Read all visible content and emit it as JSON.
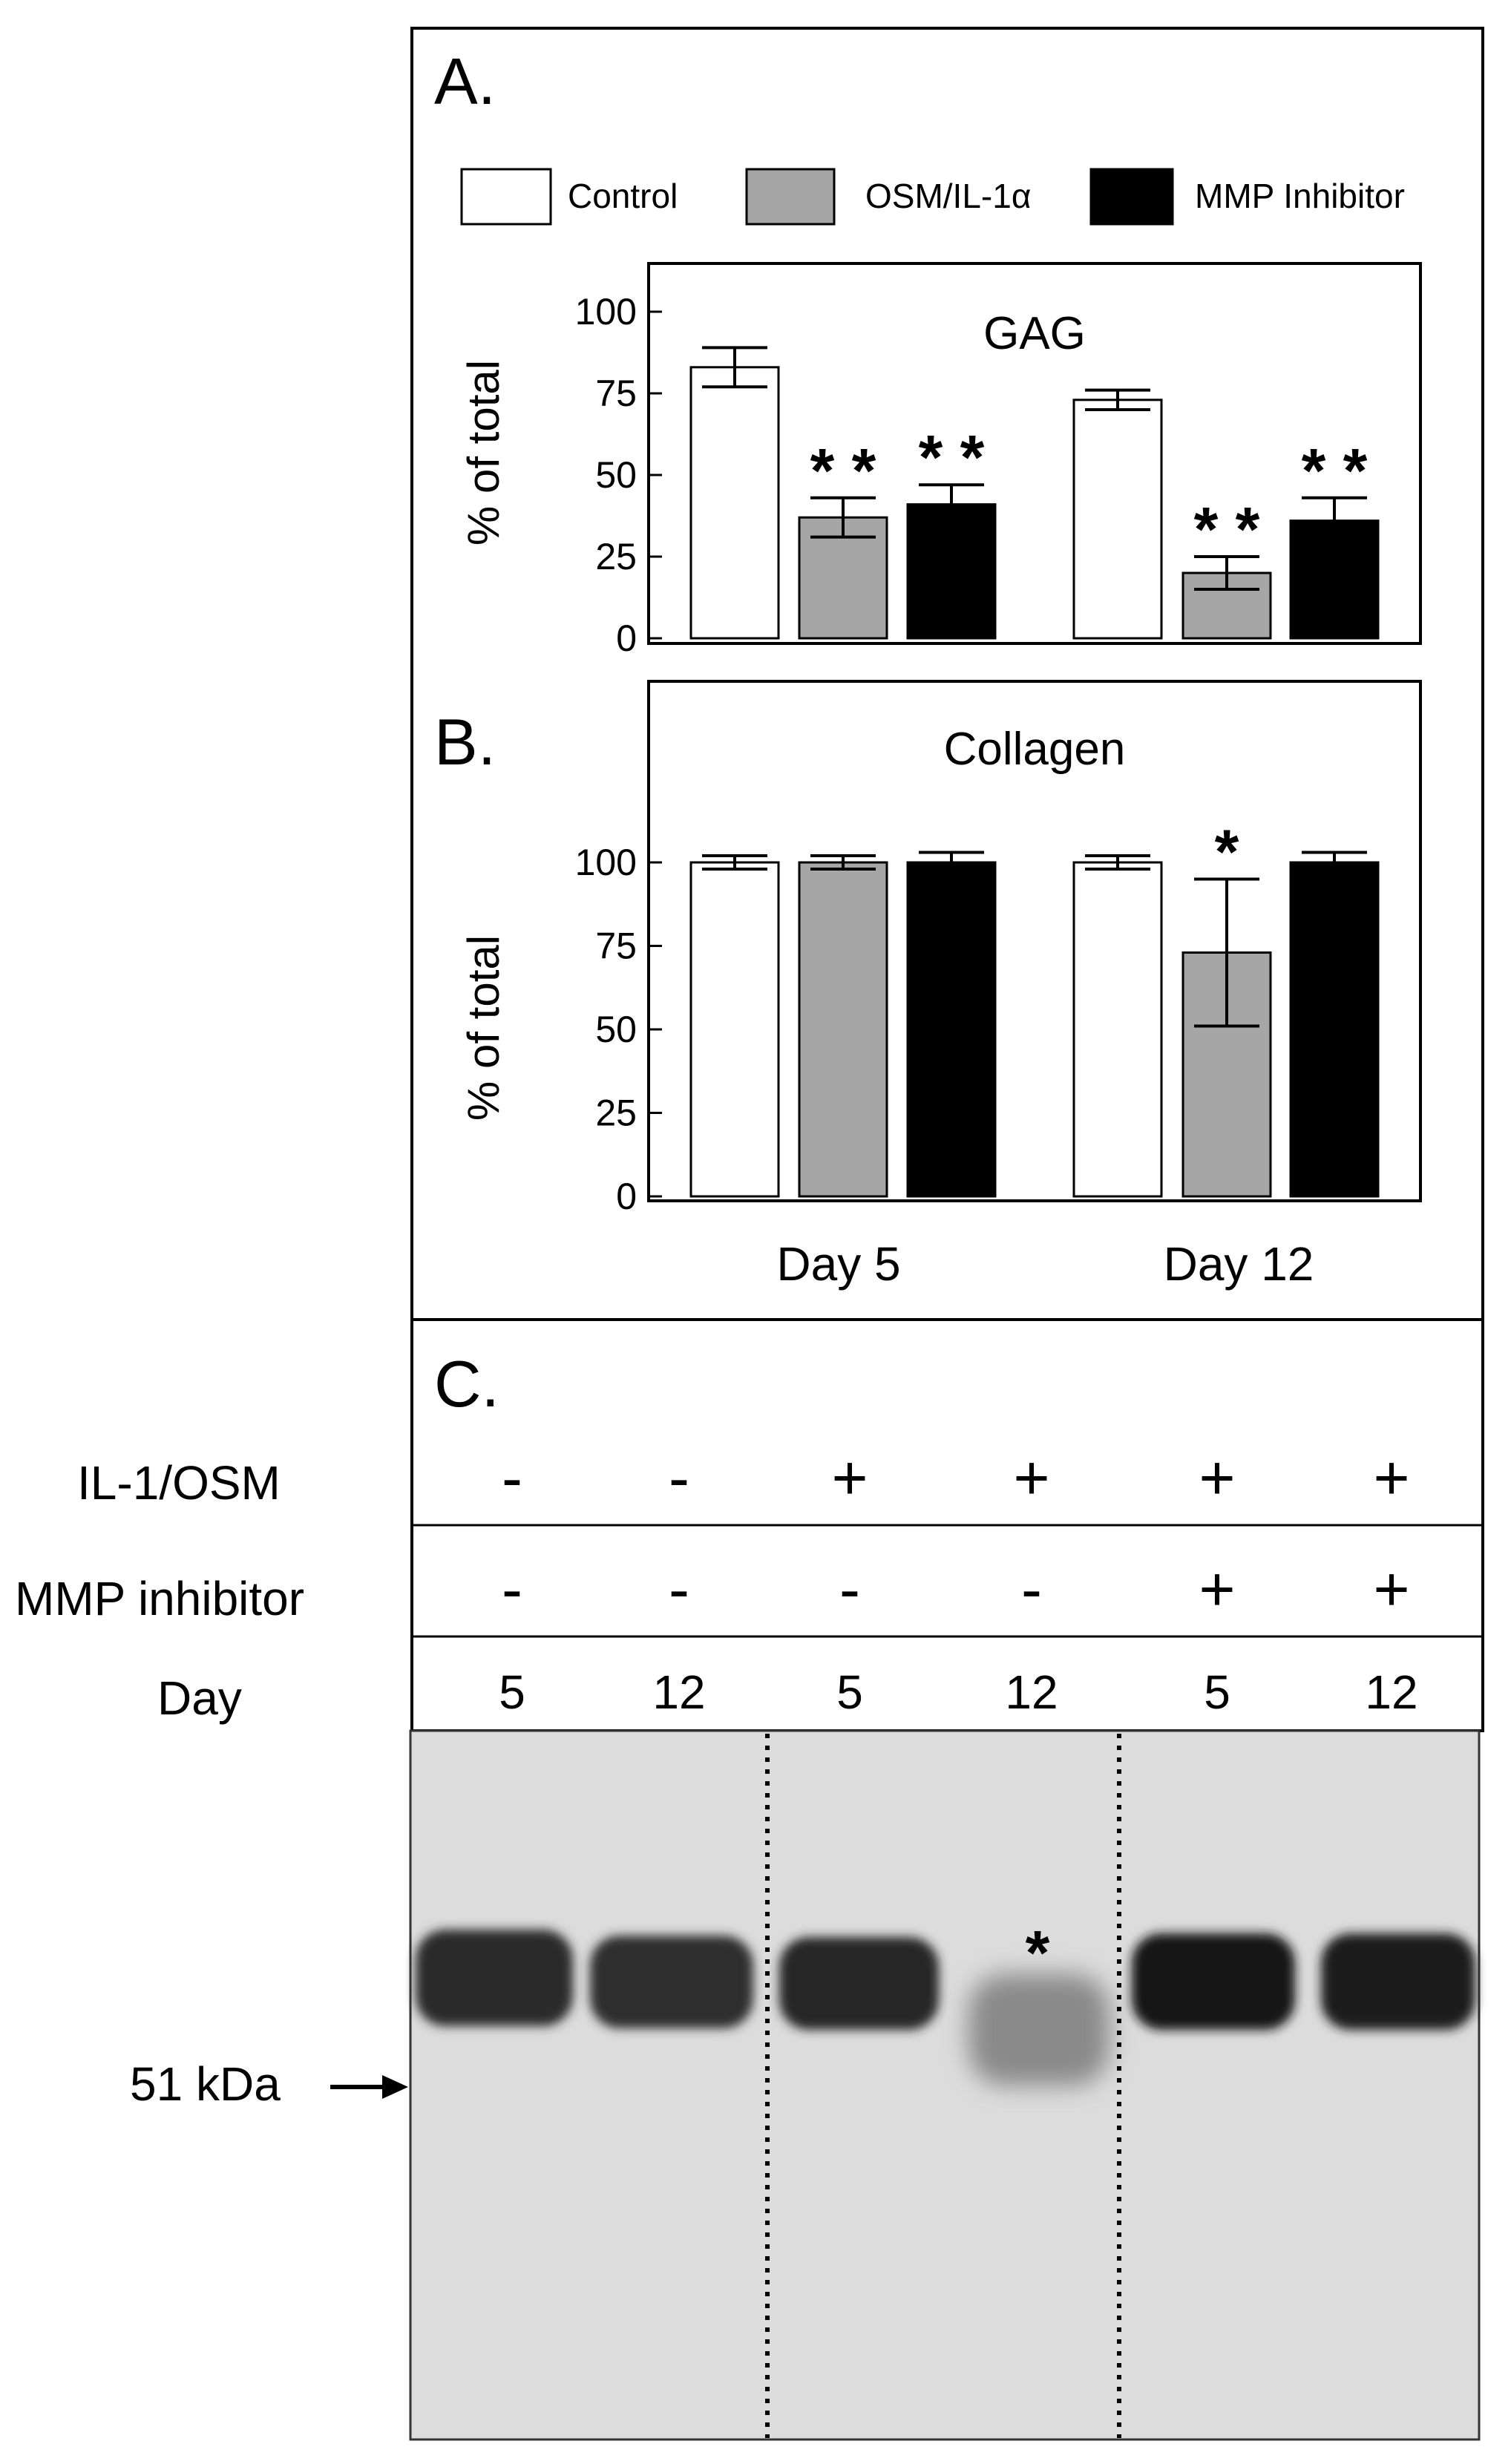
{
  "panels": {
    "a_letter": "A.",
    "b_letter": "B.",
    "c_letter": "C."
  },
  "legend": [
    {
      "label": "Control",
      "color": "#ffffff"
    },
    {
      "label": "OSM/IL-1α",
      "color": "#a6a6a6"
    },
    {
      "label": "MMP Inhibitor",
      "color": "#000000"
    }
  ],
  "chart_data": [
    {
      "type": "bar",
      "title": "GAG",
      "ylabel": "% of total",
      "ylim": [
        0,
        100
      ],
      "yticks": [
        "0",
        "25",
        "50",
        "75",
        "100"
      ],
      "categories": [
        "Day 5",
        "Day 12"
      ],
      "series": [
        {
          "name": "Control",
          "values": [
            83,
            73
          ],
          "errors": [
            6,
            3
          ],
          "sig": [
            "",
            ""
          ],
          "color": "#ffffff"
        },
        {
          "name": "OSM/IL-1α",
          "values": [
            37,
            20
          ],
          "errors": [
            6,
            5
          ],
          "sig": [
            "**",
            "**"
          ],
          "color": "#a6a6a6"
        },
        {
          "name": "MMP Inhibitor",
          "values": [
            41,
            36
          ],
          "errors": [
            6,
            7
          ],
          "sig": [
            "**",
            "**"
          ],
          "color": "#000000"
        }
      ]
    },
    {
      "type": "bar",
      "title": "Collagen",
      "ylabel": "% of total",
      "ylim": [
        0,
        100
      ],
      "yticks": [
        "0",
        "25",
        "50",
        "75",
        "100"
      ],
      "categories": [
        "Day 5",
        "Day 12"
      ],
      "series": [
        {
          "name": "Control",
          "values": [
            100,
            100
          ],
          "errors": [
            2,
            2
          ],
          "sig": [
            "",
            ""
          ],
          "color": "#ffffff"
        },
        {
          "name": "OSM/IL-1α",
          "values": [
            100,
            73
          ],
          "errors": [
            2,
            22
          ],
          "sig": [
            "",
            "*"
          ],
          "color": "#a6a6a6"
        },
        {
          "name": "MMP Inhibitor",
          "values": [
            100,
            100
          ],
          "errors": [
            3,
            3
          ],
          "sig": [
            "",
            ""
          ],
          "color": "#000000"
        }
      ]
    }
  ],
  "blot": {
    "row_labels": {
      "treatment": "IL-1/OSM",
      "inhibitor": "MMP inhibitor",
      "day": "Day"
    },
    "lanes": [
      {
        "il1_osm": "-",
        "mmp_inhibitor": "-",
        "day": "5"
      },
      {
        "il1_osm": "-",
        "mmp_inhibitor": "-",
        "day": "12"
      },
      {
        "il1_osm": "+",
        "mmp_inhibitor": "-",
        "day": "5"
      },
      {
        "il1_osm": "+",
        "mmp_inhibitor": "-",
        "day": "12"
      },
      {
        "il1_osm": "+",
        "mmp_inhibitor": "+",
        "day": "5"
      },
      {
        "il1_osm": "+",
        "mmp_inhibitor": "+",
        "day": "12"
      }
    ],
    "marker": "51 kDa",
    "lane4_mark": "*"
  }
}
